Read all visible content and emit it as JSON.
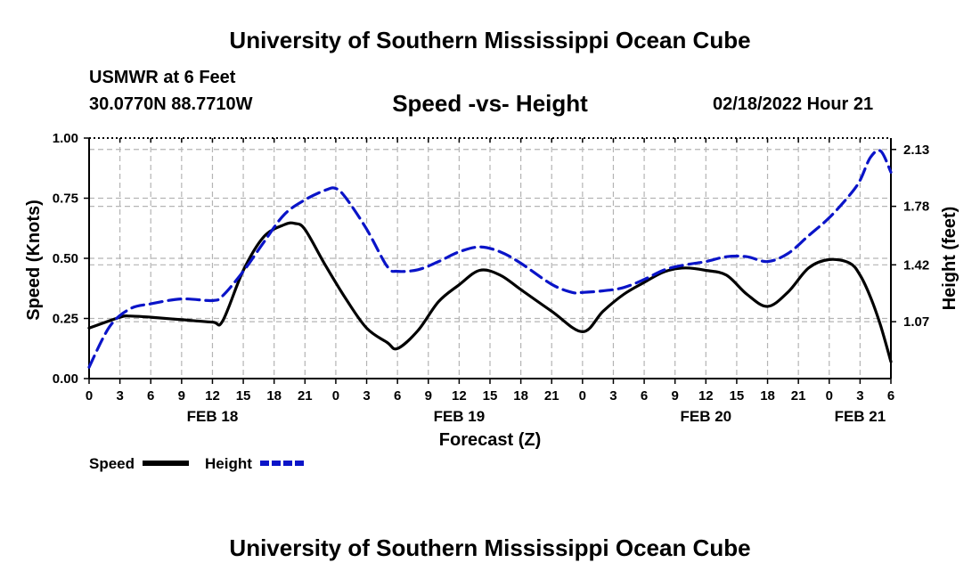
{
  "header": {
    "title": "University of Southern Mississippi Ocean Cube",
    "station": "USMWR at 6 Feet",
    "coords": "30.0770N  88.7710W",
    "chart_title": "Speed -vs- Height",
    "datetime": "02/18/2022 Hour 21",
    "footer_title": "University of Southern Mississippi Ocean Cube"
  },
  "colors": {
    "speed": "#000000",
    "height": "#0a14c8",
    "grid": "#b4b4b4"
  },
  "chart_data": {
    "type": "line",
    "title": "Speed -vs- Height",
    "xlabel": "Forecast (Z)",
    "ylabel": "Speed (Knots)",
    "y2label": "Height (feet)",
    "x_hours_range": [
      0,
      78
    ],
    "ylim": [
      0,
      1
    ],
    "y2lim": [
      0.72,
      2.2
    ],
    "y_ticks": [
      "0.00",
      "0.25",
      "0.50",
      "0.75",
      "1.00"
    ],
    "y_tick_values": [
      0,
      0.25,
      0.5,
      0.75,
      1.0
    ],
    "y2_ticks": [
      "1.07",
      "1.42",
      "1.78",
      "2.13"
    ],
    "y2_tick_values": [
      1.07,
      1.42,
      1.78,
      2.13
    ],
    "x_tick_labels": [
      "0",
      "3",
      "6",
      "9",
      "12",
      "15",
      "18",
      "21",
      "0",
      "3",
      "6",
      "9",
      "12",
      "15",
      "18",
      "21",
      "0",
      "3",
      "6",
      "9",
      "12",
      "15",
      "18",
      "21",
      "0",
      "3",
      "6"
    ],
    "day_labels": [
      {
        "label": "FEB 18",
        "hour": 12
      },
      {
        "label": "FEB 19",
        "hour": 36
      },
      {
        "label": "FEB 20",
        "hour": 60
      },
      {
        "label": "FEB 21",
        "hour": 75
      }
    ],
    "legend_position": "bottom-left",
    "series": [
      {
        "name": "Speed",
        "style": "solid",
        "x": [
          0,
          3,
          4,
          6,
          9,
          12,
          13,
          15,
          17,
          19,
          20,
          21,
          23,
          25,
          27,
          29,
          30,
          32,
          34,
          36,
          38,
          40,
          42,
          45,
          48,
          50,
          52,
          54,
          56,
          58,
          60,
          62,
          64,
          66,
          68,
          70,
          72,
          74,
          75,
          76,
          77,
          78
        ],
        "values": [
          0.21,
          0.255,
          0.26,
          0.255,
          0.245,
          0.235,
          0.24,
          0.45,
          0.59,
          0.64,
          0.645,
          0.62,
          0.47,
          0.33,
          0.21,
          0.15,
          0.125,
          0.2,
          0.32,
          0.39,
          0.45,
          0.43,
          0.37,
          0.28,
          0.195,
          0.28,
          0.35,
          0.4,
          0.445,
          0.46,
          0.45,
          0.43,
          0.35,
          0.3,
          0.36,
          0.46,
          0.495,
          0.48,
          0.43,
          0.34,
          0.22,
          0.07
        ]
      },
      {
        "name": "Height",
        "style": "dashed",
        "x": [
          0,
          2,
          4,
          6,
          9,
          12,
          13,
          15,
          17,
          19,
          21,
          23,
          24,
          25,
          27,
          29,
          30,
          32,
          34,
          36,
          38,
          40,
          42,
          45,
          47,
          48,
          50,
          52,
          54,
          56,
          58,
          60,
          62,
          64,
          66,
          68,
          70,
          72,
          74,
          75,
          76,
          77,
          78
        ],
        "values": [
          0.79,
          1.04,
          1.15,
          1.18,
          1.21,
          1.2,
          1.23,
          1.38,
          1.56,
          1.73,
          1.82,
          1.88,
          1.89,
          1.83,
          1.64,
          1.41,
          1.38,
          1.39,
          1.44,
          1.5,
          1.53,
          1.5,
          1.43,
          1.3,
          1.25,
          1.25,
          1.26,
          1.28,
          1.33,
          1.39,
          1.42,
          1.44,
          1.47,
          1.47,
          1.44,
          1.49,
          1.6,
          1.71,
          1.85,
          1.94,
          2.08,
          2.12,
          1.99
        ]
      }
    ]
  }
}
